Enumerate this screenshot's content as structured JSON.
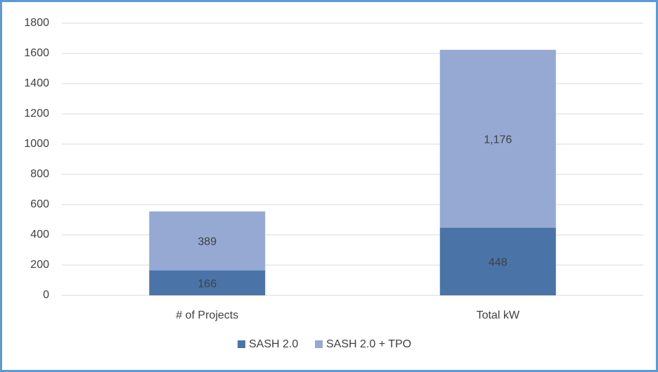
{
  "chart_data": {
    "type": "stacked_bar",
    "categories": [
      "# of Projects",
      "Total kW"
    ],
    "series": [
      {
        "name": "SASH 2.0",
        "color": "#4a74a8",
        "values": [
          166,
          448
        ],
        "value_labels": [
          "166",
          "448"
        ]
      },
      {
        "name": "SASH 2.0 + TPO",
        "color": "#95a9d2",
        "values": [
          389,
          1176
        ],
        "value_labels": [
          "389",
          "1,176"
        ]
      }
    ],
    "ylim": [
      0,
      1800
    ],
    "yticks": [
      0,
      200,
      400,
      600,
      800,
      1000,
      1200,
      1400,
      1600,
      1800
    ],
    "grid": true,
    "legend": "bottom"
  }
}
